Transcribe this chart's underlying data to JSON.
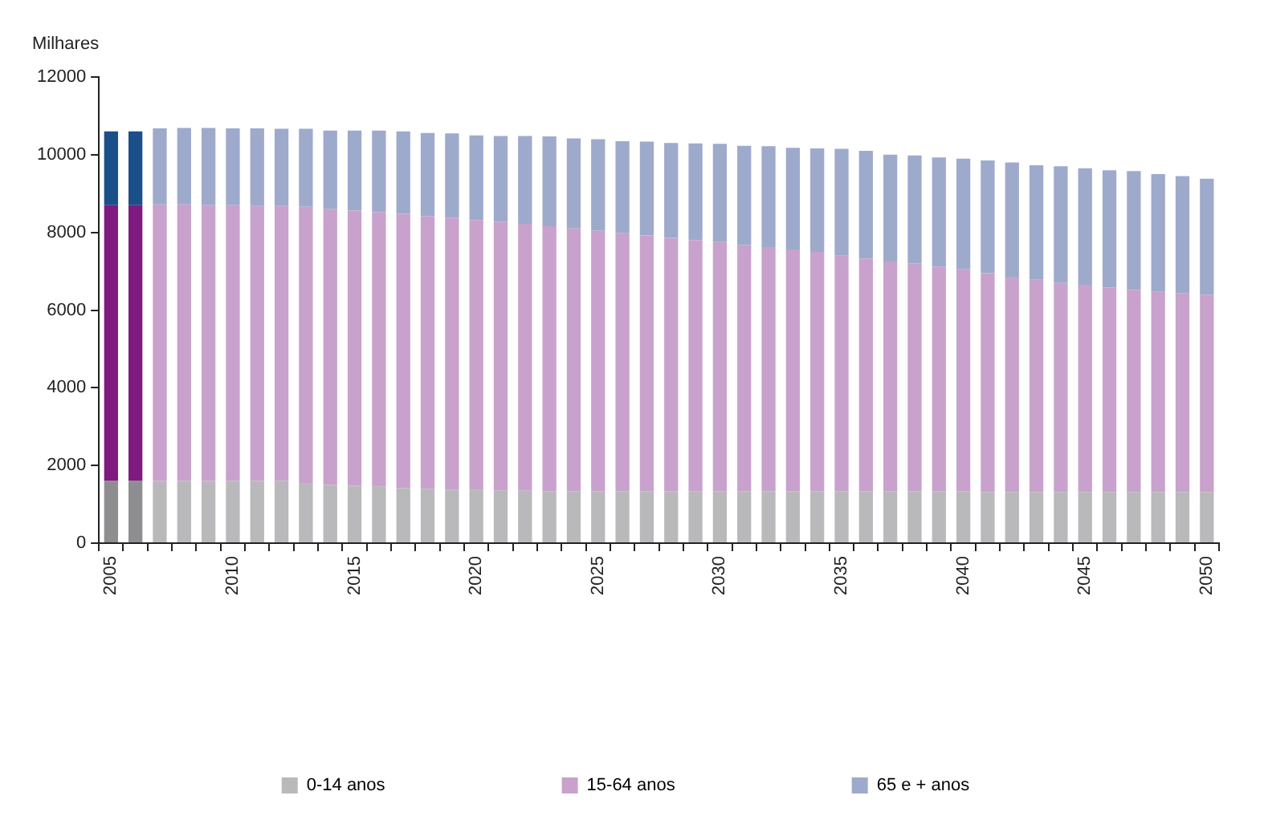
{
  "chart_data": {
    "type": "bar",
    "stacked": true,
    "ylabel": "Milhares",
    "categories": [
      "2005",
      null,
      null,
      null,
      null,
      "2010",
      null,
      null,
      null,
      null,
      "2015",
      null,
      null,
      null,
      null,
      "2020",
      null,
      null,
      null,
      null,
      "2025",
      null,
      null,
      null,
      null,
      "2030",
      null,
      null,
      null,
      null,
      "2035",
      null,
      null,
      null,
      null,
      "2040",
      null,
      null,
      null,
      null,
      "2045",
      null,
      null,
      null,
      null,
      "2050"
    ],
    "series": [
      {
        "name": "0-14 anos",
        "color": "#b9b9bb",
        "colors": [
          "#8e8e90",
          "#8e8e90",
          "#b9b9bb",
          "#b9b9bb",
          "#b9b9bb",
          "#b9b9bb",
          "#b9b9bb",
          "#b9b9bb",
          "#b9b9bb",
          "#b9b9bb",
          "#b9b9bb",
          "#b9b9bb",
          "#b9b9bb",
          "#b9b9bb",
          "#b9b9bb",
          "#b9b9bb",
          "#b9b9bb",
          "#b9b9bb",
          "#b9b9bb",
          "#b9b9bb",
          "#b9b9bb",
          "#b9b9bb",
          "#b9b9bb",
          "#b9b9bb",
          "#b9b9bb",
          "#b9b9bb",
          "#b9b9bb",
          "#b9b9bb",
          "#b9b9bb",
          "#b9b9bb",
          "#b9b9bb",
          "#b9b9bb",
          "#b9b9bb",
          "#b9b9bb",
          "#b9b9bb",
          "#b9b9bb",
          "#b9b9bb",
          "#b9b9bb",
          "#b9b9bb",
          "#b9b9bb",
          "#b9b9bb",
          "#b9b9bb",
          "#b9b9bb",
          "#b9b9bb",
          "#b9b9bb",
          "#b9b9bb"
        ],
        "values": [
          1600,
          1600,
          1600,
          1600,
          1600,
          1600,
          1600,
          1600,
          1550,
          1500,
          1480,
          1450,
          1420,
          1400,
          1380,
          1370,
          1360,
          1350,
          1340,
          1340,
          1340,
          1340,
          1340,
          1340,
          1340,
          1340,
          1340,
          1340,
          1340,
          1340,
          1340,
          1340,
          1340,
          1340,
          1340,
          1340,
          1320,
          1320,
          1320,
          1320,
          1320,
          1320,
          1320,
          1320,
          1320,
          1320
        ]
      },
      {
        "name": "15-64 anos",
        "color": "#c8a2cc",
        "colors": [
          "#7e1a80",
          "#7e1a80",
          "#c8a2cc",
          "#c8a2cc",
          "#c8a2cc",
          "#c8a2cc",
          "#c8a2cc",
          "#c8a2cc",
          "#c8a2cc",
          "#c8a2cc",
          "#c8a2cc",
          "#c8a2cc",
          "#c8a2cc",
          "#c8a2cc",
          "#c8a2cc",
          "#c8a2cc",
          "#c8a2cc",
          "#c8a2cc",
          "#c8a2cc",
          "#c8a2cc",
          "#c8a2cc",
          "#c8a2cc",
          "#c8a2cc",
          "#c8a2cc",
          "#c8a2cc",
          "#c8a2cc",
          "#c8a2cc",
          "#c8a2cc",
          "#c8a2cc",
          "#c8a2cc",
          "#c8a2cc",
          "#c8a2cc",
          "#c8a2cc",
          "#c8a2cc",
          "#c8a2cc",
          "#c8a2cc",
          "#c8a2cc",
          "#c8a2cc",
          "#c8a2cc",
          "#c8a2cc",
          "#c8a2cc",
          "#c8a2cc",
          "#c8a2cc",
          "#c8a2cc",
          "#c8a2cc",
          "#c8a2cc"
        ],
        "values": [
          7100,
          7100,
          7120,
          7120,
          7100,
          7100,
          7080,
          7080,
          7110,
          7100,
          7080,
          7070,
          7060,
          7020,
          7000,
          6950,
          6920,
          6870,
          6820,
          6760,
          6700,
          6640,
          6580,
          6520,
          6460,
          6410,
          6340,
          6280,
          6220,
          6160,
          6060,
          5980,
          5910,
          5860,
          5780,
          5710,
          5630,
          5540,
          5460,
          5380,
          5330,
          5260,
          5200,
          5150,
          5110,
          5080
        ]
      },
      {
        "name": "65 e + anos",
        "color": "#9eaacc",
        "colors": [
          "#1b4f8a",
          "#1b4f8a",
          "#9eaacc",
          "#9eaacc",
          "#9eaacc",
          "#9eaacc",
          "#9eaacc",
          "#9eaacc",
          "#9eaacc",
          "#9eaacc",
          "#9eaacc",
          "#9eaacc",
          "#9eaacc",
          "#9eaacc",
          "#9eaacc",
          "#9eaacc",
          "#9eaacc",
          "#9eaacc",
          "#9eaacc",
          "#9eaacc",
          "#9eaacc",
          "#9eaacc",
          "#9eaacc",
          "#9eaacc",
          "#9eaacc",
          "#9eaacc",
          "#9eaacc",
          "#9eaacc",
          "#9eaacc",
          "#9eaacc",
          "#9eaacc",
          "#9eaacc",
          "#9eaacc",
          "#9eaacc",
          "#9eaacc",
          "#9eaacc",
          "#9eaacc",
          "#9eaacc",
          "#9eaacc",
          "#9eaacc",
          "#9eaacc",
          "#9eaacc",
          "#9eaacc",
          "#9eaacc",
          "#9eaacc",
          "#9eaacc"
        ],
        "values": [
          1900,
          1900,
          1960,
          1970,
          1990,
          1980,
          2000,
          1990,
          2010,
          2020,
          2060,
          2100,
          2120,
          2140,
          2170,
          2180,
          2200,
          2260,
          2310,
          2320,
          2360,
          2370,
          2420,
          2440,
          2490,
          2530,
          2550,
          2600,
          2620,
          2660,
          2750,
          2780,
          2750,
          2780,
          2810,
          2850,
          2900,
          2940,
          2950,
          3000,
          3000,
          3020,
          3060,
          3030,
          3020,
          2980
        ]
      }
    ],
    "ylim": [
      0,
      12000
    ],
    "yticks": [
      0,
      2000,
      4000,
      6000,
      8000,
      10000,
      12000
    ],
    "grid": false,
    "legend": "bottom"
  }
}
